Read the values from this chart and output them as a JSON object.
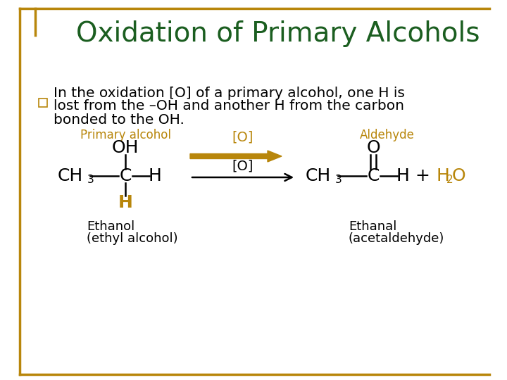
{
  "title": "Oxidation of Primary Alcohols",
  "title_color": "#1B5E20",
  "title_fontsize": 28,
  "background_color": "#FFFFFF",
  "border_color": "#B8860B",
  "bullet_text_line1": "In the oxidation [O] of a primary alcohol, one H is",
  "bullet_text_line2": "lost from the –OH and another H from the carbon",
  "bullet_text_line3": "bonded to the OH.",
  "text_color": "#000000",
  "gold_color": "#B8860B",
  "label_primary": "Primary alcohol",
  "label_aldehyde": "Aldehyde",
  "label_ethanol": "Ethanol",
  "label_ethyl": "(ethyl alcohol)",
  "label_ethanal": "Ethanal",
  "label_acetaldehyde": "(acetaldehyde)",
  "arrow_label_top": "[O]",
  "arrow_label_mid": "[O]"
}
